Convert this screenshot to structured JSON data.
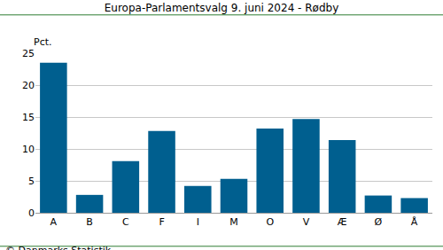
{
  "chart_data": {
    "type": "bar",
    "title": "Europa-Parlamentsvalg 9. juni 2024 - Rødby",
    "ylabel": "Pct.",
    "categories": [
      "A",
      "B",
      "C",
      "F",
      "I",
      "M",
      "O",
      "V",
      "Æ",
      "Ø",
      "Å"
    ],
    "values": [
      23.5,
      2.8,
      8.1,
      12.8,
      4.2,
      5.3,
      13.2,
      14.7,
      11.4,
      2.7,
      2.3
    ],
    "color": "#005f8f",
    "ylim": [
      0,
      25
    ],
    "yticks": [
      0,
      5,
      10,
      15,
      20,
      25
    ],
    "grid": true,
    "annotations": [
      "© Danmarks Statistik"
    ]
  }
}
